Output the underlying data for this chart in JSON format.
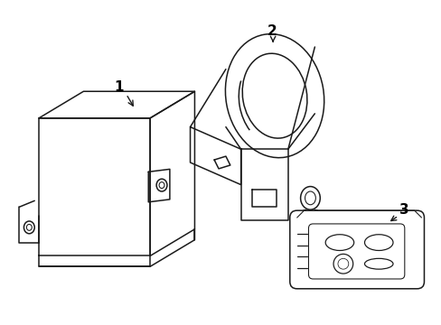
{
  "background_color": "#ffffff",
  "line_color": "#1a1a1a",
  "label_color": "#000000",
  "figsize": [
    4.89,
    3.6
  ],
  "dpi": 100,
  "lw": 1.1
}
